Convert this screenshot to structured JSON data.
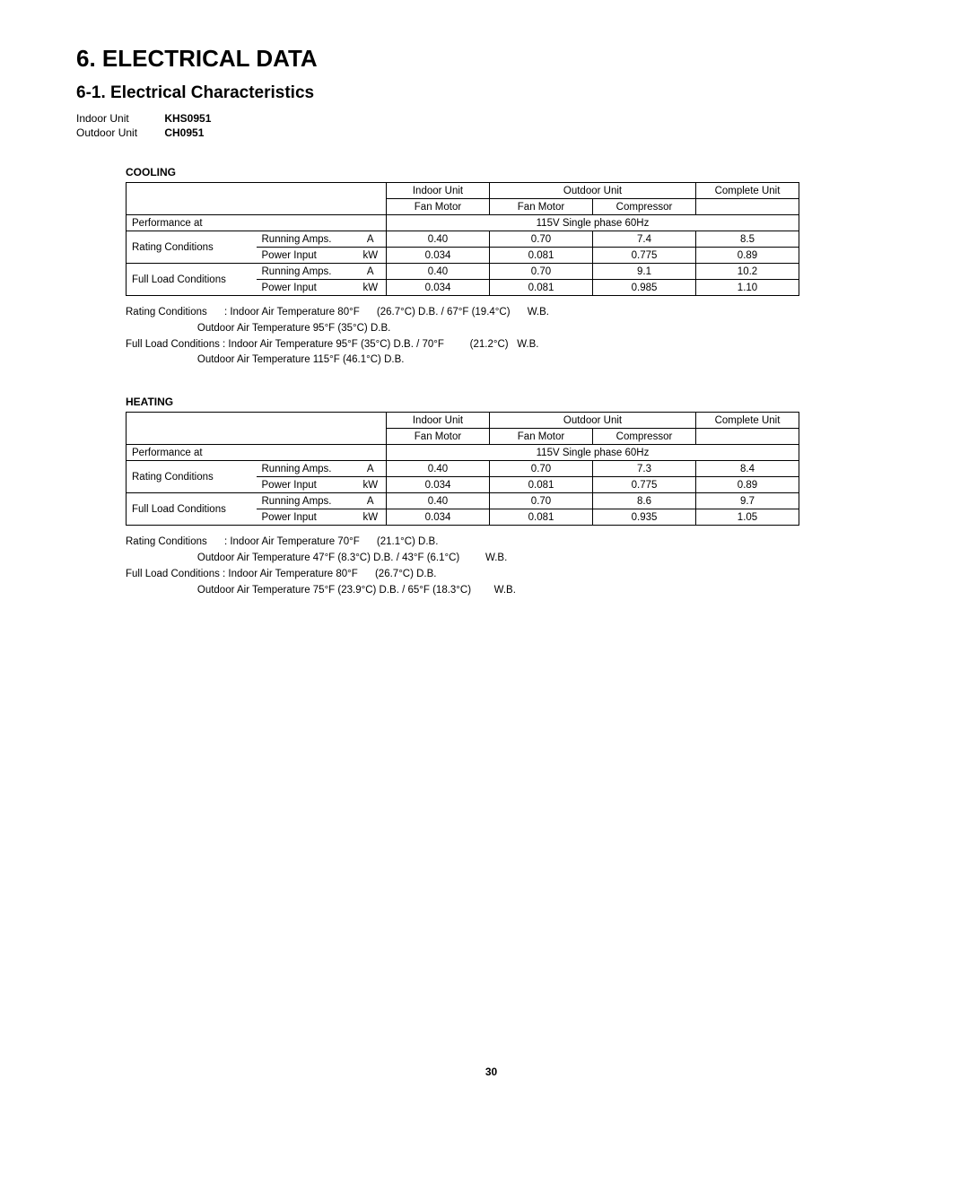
{
  "title": "6.   ELECTRICAL DATA",
  "subtitle": "6-1.  Electrical Characteristics",
  "units": {
    "indoor_label": "Indoor Unit",
    "indoor_model": "KHS0951",
    "outdoor_label": "Outdoor Unit",
    "outdoor_model": "CH0951"
  },
  "labels": {
    "indoor_unit": "Indoor Unit",
    "outdoor_unit": "Outdoor Unit",
    "complete_unit": "Complete Unit",
    "fan_motor": "Fan Motor",
    "compressor": "Compressor",
    "performance_at": "Performance at",
    "rating_conditions": "Rating Conditions",
    "full_load_conditions": "Full Load Conditions",
    "running_amps": "Running Amps.",
    "power_input": "Power Input",
    "unit_a": "A",
    "unit_kw": "kW",
    "phase": "115V  Single phase  60Hz"
  },
  "cooling": {
    "heading": "COOLING",
    "rating_amps": {
      "in_fan": "0.40",
      "out_fan": "0.70",
      "comp": "7.4",
      "complete": "8.5"
    },
    "rating_kw": {
      "in_fan": "0.034",
      "out_fan": "0.081",
      "comp": "0.775",
      "complete": "0.89"
    },
    "full_amps": {
      "in_fan": "0.40",
      "out_fan": "0.70",
      "comp": "9.1",
      "complete": "10.2"
    },
    "full_kw": {
      "in_fan": "0.034",
      "out_fan": "0.081",
      "comp": "0.985",
      "complete": "1.10"
    },
    "notes": {
      "l1": "Rating Conditions      : Indoor Air Temperature 80°F      (26.7°C) D.B. / 67°F (19.4°C)      W.B.",
      "l2": "                         Outdoor Air Temperature 95°F (35°C) D.B.",
      "l3": "Full Load Conditions : Indoor Air Temperature 95°F (35°C) D.B. / 70°F         (21.2°C)   W.B.",
      "l4": "                         Outdoor Air Temperature 115°F (46.1°C) D.B."
    }
  },
  "heating": {
    "heading": "HEATING",
    "rating_amps": {
      "in_fan": "0.40",
      "out_fan": "0.70",
      "comp": "7.3",
      "complete": "8.4"
    },
    "rating_kw": {
      "in_fan": "0.034",
      "out_fan": "0.081",
      "comp": "0.775",
      "complete": "0.89"
    },
    "full_amps": {
      "in_fan": "0.40",
      "out_fan": "0.70",
      "comp": "8.6",
      "complete": "9.7"
    },
    "full_kw": {
      "in_fan": "0.034",
      "out_fan": "0.081",
      "comp": "0.935",
      "complete": "1.05"
    },
    "notes": {
      "l1": "Rating Conditions      : Indoor Air Temperature 70°F      (21.1°C) D.B.",
      "l2": "                         Outdoor Air Temperature 47°F (8.3°C) D.B. / 43°F (6.1°C)         W.B.",
      "l3": "Full Load Conditions : Indoor Air Temperature 80°F      (26.7°C) D.B.",
      "l4": "                         Outdoor Air Temperature 75°F (23.9°C) D.B. / 65°F (18.3°C)        W.B."
    }
  },
  "page_number": "30",
  "layout": {
    "col_w": {
      "c1": 145,
      "c2": 110,
      "c3": 35,
      "c4": 115,
      "c5": 115,
      "c6": 115,
      "c7": 115
    }
  }
}
